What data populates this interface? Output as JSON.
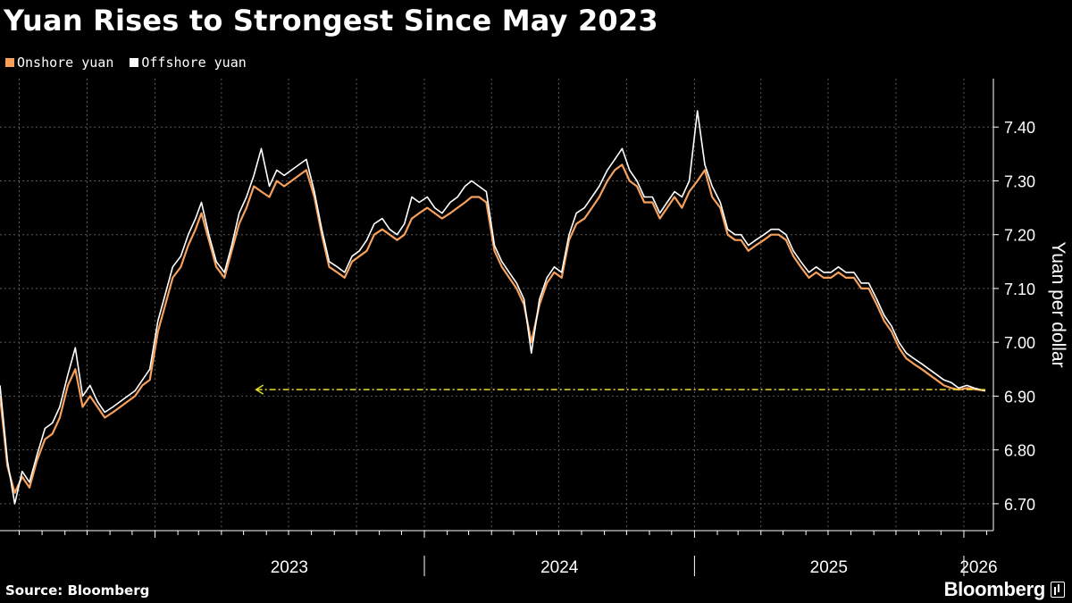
{
  "title": "Yuan Rises to Strongest Since May 2023",
  "source": "Source: Bloomberg",
  "brand": "Bloomberg",
  "colors": {
    "background": "#000000",
    "onshore": "#f6a05b",
    "offshore": "#ffffff",
    "reference_line": "#e8dc2c",
    "grid": "#5a5a5a"
  },
  "chart_data": {
    "type": "line",
    "title": "Yuan Rises to Strongest Since May 2023",
    "xlabel": "",
    "ylabel": "Yuan per dollar",
    "ylim": [
      6.65,
      7.49
    ],
    "yticks": [
      "6.70",
      "6.80",
      "6.90",
      "7.00",
      "7.10",
      "7.20",
      "7.30",
      "7.40"
    ],
    "xticks": [
      "2023",
      "2024",
      "2025",
      "2026"
    ],
    "grid": true,
    "legend_position": "top-left",
    "axis_position": "right",
    "x_range": [
      "2022-06-05",
      "2026-02-10"
    ],
    "reference_line": {
      "y": 6.912,
      "x_start": "2023-05-18",
      "x_end": "2026-01-30",
      "style": "dashed-arrow-left"
    },
    "series": [
      {
        "name": "Onshore yuan",
        "color": "#f6a05b",
        "points": [
          [
            "2022-06-05",
            6.9
          ],
          [
            "2022-06-15",
            6.77
          ],
          [
            "2022-06-25",
            6.72
          ],
          [
            "2022-07-05",
            6.75
          ],
          [
            "2022-07-15",
            6.73
          ],
          [
            "2022-07-25",
            6.78
          ],
          [
            "2022-08-05",
            6.82
          ],
          [
            "2022-08-15",
            6.83
          ],
          [
            "2022-08-25",
            6.86
          ],
          [
            "2022-09-05",
            6.92
          ],
          [
            "2022-09-15",
            6.95
          ],
          [
            "2022-09-25",
            6.88
          ],
          [
            "2022-10-05",
            6.9
          ],
          [
            "2022-10-15",
            6.88
          ],
          [
            "2022-10-25",
            6.86
          ],
          [
            "2022-11-05",
            6.87
          ],
          [
            "2022-11-15",
            6.88
          ],
          [
            "2022-11-25",
            6.89
          ],
          [
            "2022-12-05",
            6.9
          ],
          [
            "2022-12-15",
            6.92
          ],
          [
            "2022-12-25",
            6.93
          ],
          [
            "2023-01-05",
            7.02
          ],
          [
            "2023-01-15",
            7.07
          ],
          [
            "2023-01-25",
            7.12
          ],
          [
            "2023-02-05",
            7.14
          ],
          [
            "2023-02-15",
            7.18
          ],
          [
            "2023-02-25",
            7.21
          ],
          [
            "2023-03-05",
            7.24
          ],
          [
            "2023-03-15",
            7.19
          ],
          [
            "2023-03-25",
            7.14
          ],
          [
            "2023-04-05",
            7.12
          ],
          [
            "2023-04-15",
            7.17
          ],
          [
            "2023-04-25",
            7.22
          ],
          [
            "2023-05-05",
            7.25
          ],
          [
            "2023-05-15",
            7.29
          ],
          [
            "2023-05-25",
            7.28
          ],
          [
            "2023-06-05",
            7.27
          ],
          [
            "2023-06-15",
            7.3
          ],
          [
            "2023-06-25",
            7.29
          ],
          [
            "2023-07-05",
            7.3
          ],
          [
            "2023-07-15",
            7.31
          ],
          [
            "2023-07-25",
            7.32
          ],
          [
            "2023-08-05",
            7.27
          ],
          [
            "2023-08-15",
            7.2
          ],
          [
            "2023-08-25",
            7.14
          ],
          [
            "2023-09-05",
            7.13
          ],
          [
            "2023-09-15",
            7.12
          ],
          [
            "2023-09-25",
            7.15
          ],
          [
            "2023-10-05",
            7.16
          ],
          [
            "2023-10-15",
            7.17
          ],
          [
            "2023-10-25",
            7.2
          ],
          [
            "2023-11-05",
            7.21
          ],
          [
            "2023-11-15",
            7.2
          ],
          [
            "2023-11-25",
            7.19
          ],
          [
            "2023-12-05",
            7.2
          ],
          [
            "2023-12-15",
            7.23
          ],
          [
            "2023-12-25",
            7.24
          ],
          [
            "2024-01-05",
            7.25
          ],
          [
            "2024-01-15",
            7.24
          ],
          [
            "2024-01-25",
            7.23
          ],
          [
            "2024-02-05",
            7.24
          ],
          [
            "2024-02-15",
            7.25
          ],
          [
            "2024-02-25",
            7.26
          ],
          [
            "2024-03-05",
            7.27
          ],
          [
            "2024-03-15",
            7.27
          ],
          [
            "2024-03-25",
            7.26
          ],
          [
            "2024-04-05",
            7.17
          ],
          [
            "2024-04-15",
            7.14
          ],
          [
            "2024-04-25",
            7.12
          ],
          [
            "2024-05-05",
            7.1
          ],
          [
            "2024-05-15",
            7.07
          ],
          [
            "2024-05-25",
            7.0
          ],
          [
            "2024-06-05",
            7.07
          ],
          [
            "2024-06-15",
            7.11
          ],
          [
            "2024-06-25",
            7.13
          ],
          [
            "2024-07-05",
            7.12
          ],
          [
            "2024-07-15",
            7.19
          ],
          [
            "2024-07-25",
            7.22
          ],
          [
            "2024-08-05",
            7.23
          ],
          [
            "2024-08-15",
            7.25
          ],
          [
            "2024-08-25",
            7.27
          ],
          [
            "2024-09-05",
            7.3
          ],
          [
            "2024-09-15",
            7.32
          ],
          [
            "2024-09-25",
            7.33
          ],
          [
            "2024-10-05",
            7.3
          ],
          [
            "2024-10-15",
            7.29
          ],
          [
            "2024-10-25",
            7.26
          ],
          [
            "2024-11-05",
            7.26
          ],
          [
            "2024-11-15",
            7.23
          ],
          [
            "2024-11-25",
            7.25
          ],
          [
            "2024-12-05",
            7.27
          ],
          [
            "2024-12-15",
            7.25
          ],
          [
            "2024-12-25",
            7.28
          ],
          [
            "2025-01-05",
            7.3
          ],
          [
            "2025-01-15",
            7.32
          ],
          [
            "2025-01-25",
            7.27
          ],
          [
            "2025-02-05",
            7.25
          ],
          [
            "2025-02-15",
            7.2
          ],
          [
            "2025-02-25",
            7.19
          ],
          [
            "2025-03-05",
            7.19
          ],
          [
            "2025-03-15",
            7.17
          ],
          [
            "2025-03-25",
            7.18
          ],
          [
            "2025-04-05",
            7.19
          ],
          [
            "2025-04-15",
            7.2
          ],
          [
            "2025-04-25",
            7.2
          ],
          [
            "2025-05-05",
            7.19
          ],
          [
            "2025-05-15",
            7.16
          ],
          [
            "2025-05-25",
            7.14
          ],
          [
            "2025-06-05",
            7.12
          ],
          [
            "2025-06-15",
            7.13
          ],
          [
            "2025-06-25",
            7.12
          ],
          [
            "2025-07-05",
            7.12
          ],
          [
            "2025-07-15",
            7.13
          ],
          [
            "2025-07-25",
            7.12
          ],
          [
            "2025-08-05",
            7.12
          ],
          [
            "2025-08-15",
            7.1
          ],
          [
            "2025-08-25",
            7.1
          ],
          [
            "2025-09-05",
            7.07
          ],
          [
            "2025-09-15",
            7.04
          ],
          [
            "2025-09-25",
            7.02
          ],
          [
            "2025-10-05",
            6.99
          ],
          [
            "2025-10-15",
            6.97
          ],
          [
            "2025-10-25",
            6.96
          ],
          [
            "2025-11-05",
            6.95
          ],
          [
            "2025-11-15",
            6.94
          ],
          [
            "2025-11-25",
            6.93
          ],
          [
            "2025-12-05",
            6.92
          ],
          [
            "2025-12-15",
            6.915
          ],
          [
            "2025-12-25",
            6.912
          ],
          [
            "2026-01-05",
            6.915
          ],
          [
            "2026-01-15",
            6.913
          ],
          [
            "2026-01-30",
            6.91
          ]
        ]
      },
      {
        "name": "Offshore yuan",
        "color": "#ffffff",
        "points": [
          [
            "2022-06-05",
            6.92
          ],
          [
            "2022-06-15",
            6.78
          ],
          [
            "2022-06-25",
            6.7
          ],
          [
            "2022-07-05",
            6.76
          ],
          [
            "2022-07-15",
            6.74
          ],
          [
            "2022-07-25",
            6.79
          ],
          [
            "2022-08-05",
            6.84
          ],
          [
            "2022-08-15",
            6.85
          ],
          [
            "2022-08-25",
            6.88
          ],
          [
            "2022-09-05",
            6.94
          ],
          [
            "2022-09-15",
            6.99
          ],
          [
            "2022-09-25",
            6.9
          ],
          [
            "2022-10-05",
            6.92
          ],
          [
            "2022-10-15",
            6.89
          ],
          [
            "2022-10-25",
            6.87
          ],
          [
            "2022-11-05",
            6.88
          ],
          [
            "2022-11-15",
            6.89
          ],
          [
            "2022-11-25",
            6.9
          ],
          [
            "2022-12-05",
            6.91
          ],
          [
            "2022-12-15",
            6.93
          ],
          [
            "2022-12-25",
            6.95
          ],
          [
            "2023-01-05",
            7.04
          ],
          [
            "2023-01-15",
            7.09
          ],
          [
            "2023-01-25",
            7.14
          ],
          [
            "2023-02-05",
            7.16
          ],
          [
            "2023-02-15",
            7.2
          ],
          [
            "2023-02-25",
            7.23
          ],
          [
            "2023-03-05",
            7.26
          ],
          [
            "2023-03-15",
            7.2
          ],
          [
            "2023-03-25",
            7.15
          ],
          [
            "2023-04-05",
            7.13
          ],
          [
            "2023-04-15",
            7.18
          ],
          [
            "2023-04-25",
            7.24
          ],
          [
            "2023-05-05",
            7.27
          ],
          [
            "2023-05-15",
            7.31
          ],
          [
            "2023-05-25",
            7.36
          ],
          [
            "2023-06-05",
            7.29
          ],
          [
            "2023-06-15",
            7.32
          ],
          [
            "2023-06-25",
            7.31
          ],
          [
            "2023-07-05",
            7.32
          ],
          [
            "2023-07-15",
            7.33
          ],
          [
            "2023-07-25",
            7.34
          ],
          [
            "2023-08-05",
            7.28
          ],
          [
            "2023-08-15",
            7.21
          ],
          [
            "2023-08-25",
            7.15
          ],
          [
            "2023-09-05",
            7.14
          ],
          [
            "2023-09-15",
            7.13
          ],
          [
            "2023-09-25",
            7.16
          ],
          [
            "2023-10-05",
            7.17
          ],
          [
            "2023-10-15",
            7.19
          ],
          [
            "2023-10-25",
            7.22
          ],
          [
            "2023-11-05",
            7.23
          ],
          [
            "2023-11-15",
            7.21
          ],
          [
            "2023-11-25",
            7.2
          ],
          [
            "2023-12-05",
            7.22
          ],
          [
            "2023-12-15",
            7.27
          ],
          [
            "2023-12-25",
            7.26
          ],
          [
            "2024-01-05",
            7.27
          ],
          [
            "2024-01-15",
            7.25
          ],
          [
            "2024-01-25",
            7.24
          ],
          [
            "2024-02-05",
            7.26
          ],
          [
            "2024-02-15",
            7.27
          ],
          [
            "2024-02-25",
            7.29
          ],
          [
            "2024-03-05",
            7.3
          ],
          [
            "2024-03-15",
            7.29
          ],
          [
            "2024-03-25",
            7.28
          ],
          [
            "2024-04-05",
            7.18
          ],
          [
            "2024-04-15",
            7.15
          ],
          [
            "2024-04-25",
            7.13
          ],
          [
            "2024-05-05",
            7.11
          ],
          [
            "2024-05-15",
            7.08
          ],
          [
            "2024-05-25",
            6.98
          ],
          [
            "2024-06-05",
            7.08
          ],
          [
            "2024-06-15",
            7.12
          ],
          [
            "2024-06-25",
            7.14
          ],
          [
            "2024-07-05",
            7.13
          ],
          [
            "2024-07-15",
            7.2
          ],
          [
            "2024-07-25",
            7.24
          ],
          [
            "2024-08-05",
            7.25
          ],
          [
            "2024-08-15",
            7.27
          ],
          [
            "2024-08-25",
            7.29
          ],
          [
            "2024-09-05",
            7.32
          ],
          [
            "2024-09-15",
            7.34
          ],
          [
            "2024-09-25",
            7.36
          ],
          [
            "2024-10-05",
            7.32
          ],
          [
            "2024-10-15",
            7.3
          ],
          [
            "2024-10-25",
            7.27
          ],
          [
            "2024-11-05",
            7.27
          ],
          [
            "2024-11-15",
            7.24
          ],
          [
            "2024-11-25",
            7.26
          ],
          [
            "2024-12-05",
            7.28
          ],
          [
            "2024-12-15",
            7.27
          ],
          [
            "2024-12-25",
            7.3
          ],
          [
            "2025-01-05",
            7.43
          ],
          [
            "2025-01-15",
            7.33
          ],
          [
            "2025-01-25",
            7.29
          ],
          [
            "2025-02-05",
            7.26
          ],
          [
            "2025-02-15",
            7.21
          ],
          [
            "2025-02-25",
            7.2
          ],
          [
            "2025-03-05",
            7.2
          ],
          [
            "2025-03-15",
            7.18
          ],
          [
            "2025-03-25",
            7.19
          ],
          [
            "2025-04-05",
            7.2
          ],
          [
            "2025-04-15",
            7.21
          ],
          [
            "2025-04-25",
            7.21
          ],
          [
            "2025-05-05",
            7.2
          ],
          [
            "2025-05-15",
            7.17
          ],
          [
            "2025-05-25",
            7.15
          ],
          [
            "2025-06-05",
            7.13
          ],
          [
            "2025-06-15",
            7.14
          ],
          [
            "2025-06-25",
            7.13
          ],
          [
            "2025-07-05",
            7.13
          ],
          [
            "2025-07-15",
            7.14
          ],
          [
            "2025-07-25",
            7.13
          ],
          [
            "2025-08-05",
            7.13
          ],
          [
            "2025-08-15",
            7.11
          ],
          [
            "2025-08-25",
            7.11
          ],
          [
            "2025-09-05",
            7.08
          ],
          [
            "2025-09-15",
            7.05
          ],
          [
            "2025-09-25",
            7.03
          ],
          [
            "2025-10-05",
            7.0
          ],
          [
            "2025-10-15",
            6.98
          ],
          [
            "2025-10-25",
            6.97
          ],
          [
            "2025-11-05",
            6.96
          ],
          [
            "2025-11-15",
            6.95
          ],
          [
            "2025-11-25",
            6.94
          ],
          [
            "2025-12-05",
            6.93
          ],
          [
            "2025-12-15",
            6.925
          ],
          [
            "2025-12-25",
            6.915
          ],
          [
            "2026-01-05",
            6.92
          ],
          [
            "2026-01-15",
            6.915
          ],
          [
            "2026-01-30",
            6.91
          ]
        ]
      }
    ]
  }
}
